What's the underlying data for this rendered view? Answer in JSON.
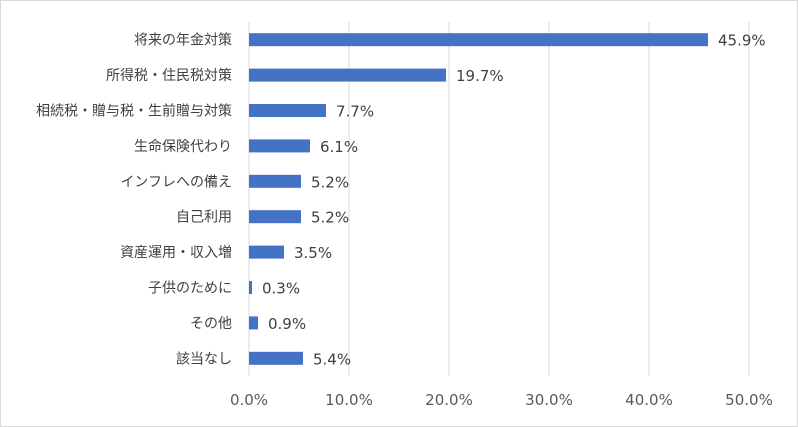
{
  "chart_data": {
    "type": "bar",
    "orientation": "horizontal",
    "categories": [
      "将来の年金対策",
      "所得税・住民税対策",
      "相続税・贈与税・生前贈与対策",
      "生命保険代わり",
      "インフレへの備え",
      "自己利用",
      "資産運用・収入増",
      "子供のために",
      "その他",
      "該当なし"
    ],
    "values": [
      45.9,
      19.7,
      7.7,
      6.1,
      5.2,
      5.2,
      3.5,
      0.3,
      0.9,
      5.4
    ],
    "data_labels": [
      "45.9%",
      "19.7%",
      "7.7%",
      "6.1%",
      "5.2%",
      "5.2%",
      "3.5%",
      "0.3%",
      "0.9%",
      "5.4%"
    ],
    "x_ticks": [
      "0.0%",
      "10.0%",
      "20.0%",
      "30.0%",
      "40.0%",
      "50.0%"
    ],
    "xlim": [
      0,
      50
    ],
    "grid": "vertical",
    "bar_color": "#4472c4",
    "grid_color": "#d9d9d9"
  }
}
